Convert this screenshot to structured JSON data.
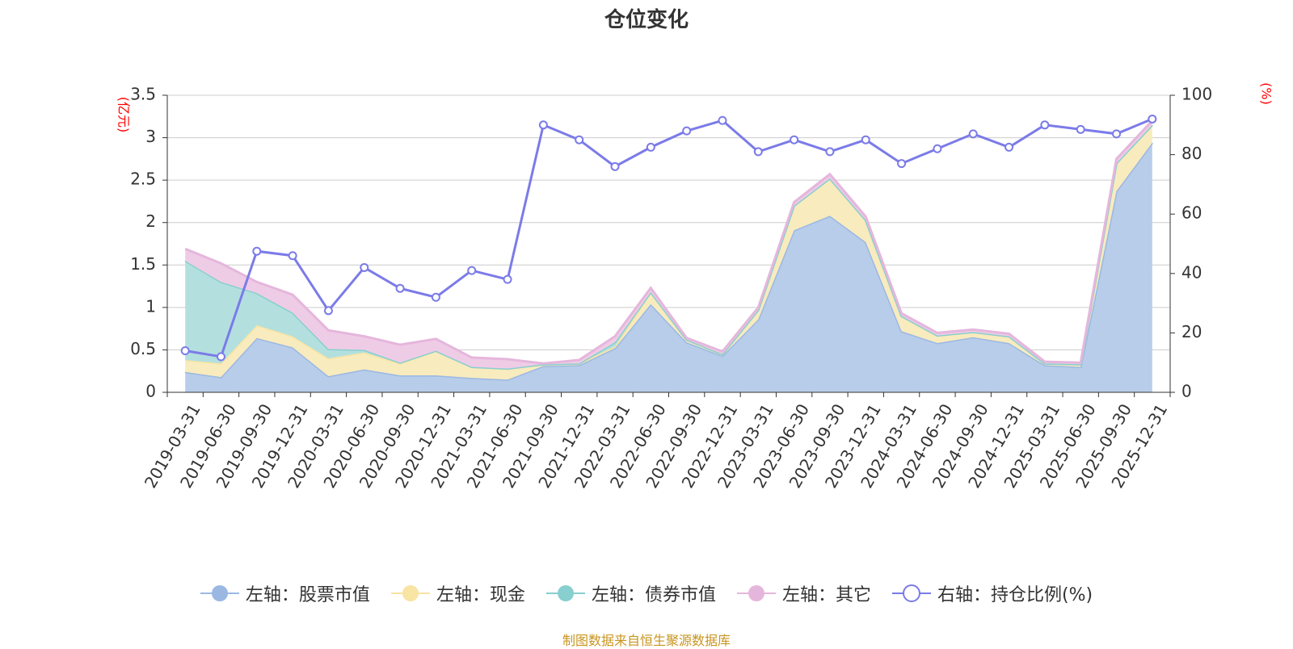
{
  "chart_data": {
    "type": "area",
    "title": "仓位变化",
    "left_axis_unit": "(亿元)",
    "right_axis_unit": "(%)",
    "ylim_left": [
      0,
      3.5
    ],
    "yticks_left": [
      "0",
      "0.5",
      "1",
      "1.5",
      "2",
      "2.5",
      "3",
      "3.5"
    ],
    "ylim_right": [
      0,
      100
    ],
    "yticks_right": [
      "0",
      "20",
      "40",
      "60",
      "80",
      "100"
    ],
    "categories": [
      "2019-03-31",
      "2019-06-30",
      "2019-09-30",
      "2019-12-31",
      "2020-03-31",
      "2020-06-30",
      "2020-09-30",
      "2020-12-31",
      "2021-03-31",
      "2021-06-30",
      "2021-09-30",
      "2021-12-31",
      "2022-03-31",
      "2022-06-30",
      "2022-09-30",
      "2022-12-31",
      "2023-03-31",
      "2023-06-30",
      "2023-09-30",
      "2023-12-31",
      "2024-03-31",
      "2024-06-30",
      "2024-09-30",
      "2024-12-31",
      "2025-03-31",
      "2025-06-30",
      "2025-09-30",
      "2025-12-31"
    ],
    "stacked_series": [
      {
        "name": "左轴：股票市值",
        "color": "#9bb8e3",
        "fill": "#b8cdea",
        "values": [
          0.24,
          0.18,
          0.64,
          0.53,
          0.19,
          0.27,
          0.2,
          0.2,
          0.17,
          0.15,
          0.31,
          0.32,
          0.52,
          1.04,
          0.59,
          0.43,
          0.86,
          1.91,
          2.08,
          1.77,
          0.72,
          0.58,
          0.65,
          0.58,
          0.32,
          0.3,
          2.37,
          2.94
        ]
      },
      {
        "name": "左轴：现金",
        "color": "#f8e4a3",
        "fill": "#f8ebbd",
        "values": [
          0.14,
          0.16,
          0.15,
          0.13,
          0.21,
          0.2,
          0.14,
          0.29,
          0.13,
          0.13,
          0.02,
          0.02,
          0.02,
          0.14,
          0.03,
          0.02,
          0.11,
          0.29,
          0.44,
          0.26,
          0.18,
          0.09,
          0.06,
          0.08,
          0.02,
          0.03,
          0.33,
          0.21
        ]
      },
      {
        "name": "左轴：债券市值",
        "color": "#88cfcf",
        "fill": "#b3e0df",
        "values": [
          1.17,
          0.96,
          0.38,
          0.28,
          0.11,
          0.03,
          0.01,
          0.0,
          0.0,
          0.0,
          0.0,
          0.0,
          0.05,
          0.0,
          0.0,
          0.0,
          0.0,
          0.0,
          0.0,
          0.0,
          0.0,
          0.0,
          0.0,
          0.0,
          0.0,
          0.0,
          0.0,
          0.0
        ]
      },
      {
        "name": "左轴：其它",
        "color": "#e5b6dc",
        "fill": "#efcce6",
        "values": [
          0.14,
          0.22,
          0.13,
          0.21,
          0.22,
          0.16,
          0.21,
          0.14,
          0.11,
          0.11,
          0.01,
          0.04,
          0.07,
          0.05,
          0.02,
          0.03,
          0.03,
          0.04,
          0.05,
          0.04,
          0.03,
          0.03,
          0.03,
          0.03,
          0.02,
          0.02,
          0.05,
          0.05
        ]
      }
    ],
    "line_series": {
      "name": "右轴：持仓比例(%)",
      "color": "#7b7be8",
      "values": [
        14,
        12,
        47.5,
        46,
        27.5,
        42,
        35,
        32,
        41,
        38,
        90,
        85,
        76,
        82.5,
        88,
        91.5,
        81,
        85,
        81,
        85,
        77,
        82,
        87,
        82.5,
        90,
        88.5,
        87,
        92
      ]
    },
    "grid": true,
    "legend_position": "bottom"
  },
  "legend": [
    {
      "label": "左轴：股票市值",
      "color": "#9bb8e3",
      "shape": "filled-circle"
    },
    {
      "label": "左轴：现金",
      "color": "#f8e4a3",
      "shape": "filled-circle"
    },
    {
      "label": "左轴：债券市值",
      "color": "#88cfcf",
      "shape": "filled-circle"
    },
    {
      "label": "左轴：其它",
      "color": "#e5b6dc",
      "shape": "filled-circle"
    },
    {
      "label": "右轴：持仓比例(%)",
      "color": "#7b7be8",
      "shape": "hollow-circle"
    }
  ],
  "source_note": "制图数据来自恒生聚源数据库"
}
